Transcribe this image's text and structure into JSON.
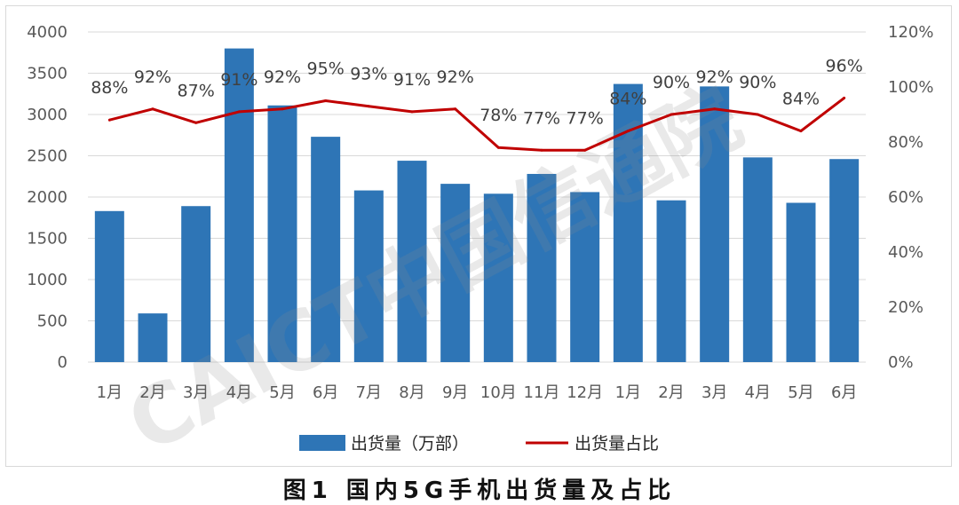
{
  "chart_data": {
    "type": "bar",
    "categories": [
      "1月",
      "2月",
      "3月",
      "4月",
      "5月",
      "6月",
      "7月",
      "8月",
      "9月",
      "10月",
      "11月",
      "12月",
      "1月",
      "2月",
      "3月",
      "4月",
      "5月",
      "6月"
    ],
    "series": [
      {
        "name": "出货量（万部）",
        "type": "bar",
        "axis": "left",
        "color": "#2e75b6",
        "values": [
          1830,
          590,
          1890,
          3800,
          3110,
          2730,
          2080,
          2440,
          2160,
          2040,
          2280,
          2060,
          3370,
          1960,
          3340,
          2480,
          1930,
          2460
        ]
      },
      {
        "name": "出货量占比",
        "type": "line",
        "axis": "right",
        "color": "#c00000",
        "values": [
          88,
          92,
          87,
          91,
          92,
          95,
          93,
          91,
          92,
          78,
          77,
          77,
          84,
          90,
          92,
          90,
          84,
          96
        ]
      }
    ],
    "y_left": {
      "min": 0,
      "max": 4000,
      "step": 500,
      "ticks": [
        "0",
        "500",
        "1000",
        "1500",
        "2000",
        "2500",
        "3000",
        "3500",
        "4000"
      ]
    },
    "y_right": {
      "min": 0,
      "max": 120,
      "step": 20,
      "ticks": [
        "0%",
        "20%",
        "40%",
        "60%",
        "80%",
        "100%",
        "120%"
      ]
    },
    "line_labels": [
      "88%",
      "92%",
      "87%",
      "91%",
      "92%",
      "95%",
      "93%",
      "91%",
      "92%",
      "78%",
      "77%",
      "77%",
      "84%",
      "90%",
      "92%",
      "90%",
      "84%",
      "96%"
    ],
    "grid": true,
    "legend_position": "bottom",
    "title": "",
    "xlabel": "",
    "ylabel": ""
  },
  "watermark": "CAICT中国信通院",
  "caption": "图1 国内5G手机出货量及占比"
}
